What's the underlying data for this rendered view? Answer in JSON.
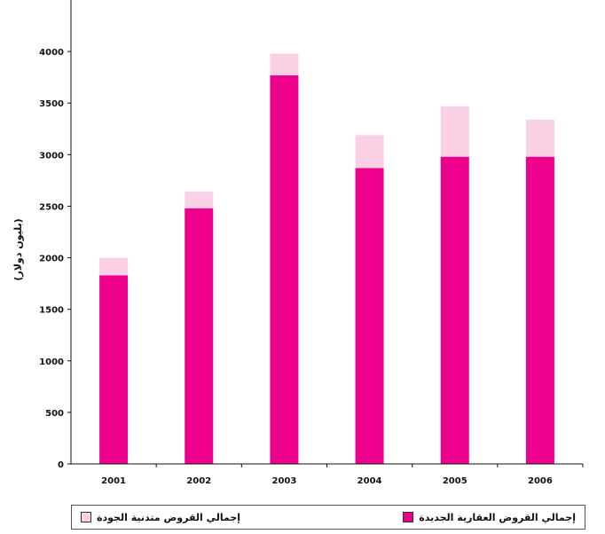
{
  "chart_data": {
    "type": "bar",
    "stacked": true,
    "categories": [
      "2001",
      "2002",
      "2003",
      "2004",
      "2005",
      "2006"
    ],
    "series": [
      {
        "name": "إجمالي القروض العقارية الجديدة",
        "values": [
          1830,
          2480,
          3770,
          2870,
          2980,
          2980
        ],
        "color": "#ec008c"
      },
      {
        "name": "إجمالي القروض متدنية الجودة",
        "values": [
          170,
          160,
          210,
          320,
          490,
          360
        ],
        "color": "#f9d0e4"
      }
    ],
    "ylabel": "(بليون دولار)",
    "ylim": [
      0,
      4500
    ],
    "yticks": [
      "0",
      "500",
      "1000",
      "1500",
      "2000",
      "2500",
      "3000",
      "3500",
      "4000"
    ],
    "grid": false,
    "legend_position": "bottom"
  }
}
